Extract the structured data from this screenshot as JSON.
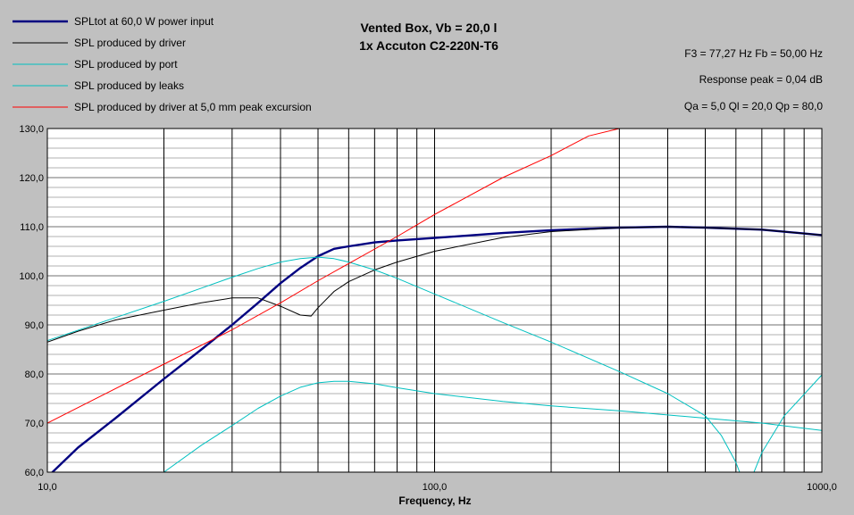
{
  "chart_data": {
    "type": "line",
    "title": "Vented Box, Vb = 20,0 l",
    "subtitle": "1x Accuton C2-220N-T6",
    "xlabel": "Frequency, Hz",
    "ylabel": "",
    "x_scale": "log",
    "xlim": [
      10,
      1000
    ],
    "ylim": [
      60,
      130
    ],
    "grid": true,
    "legend_position": "top-left",
    "info_lines": [
      "F3 = 77,27 Hz  Fb = 50,00 Hz",
      "Response peak = 0,04 dB",
      "Qa = 5,0  Ql = 20,0  Qp = 80,0"
    ],
    "x_ticks": [
      {
        "value": 10,
        "label": "10,0"
      },
      {
        "value": 100,
        "label": "100,0"
      },
      {
        "value": 1000,
        "label": "1000,0"
      }
    ],
    "y_ticks": [
      {
        "value": 60,
        "label": "60,0"
      },
      {
        "value": 70,
        "label": "70,0"
      },
      {
        "value": 80,
        "label": "80,0"
      },
      {
        "value": 90,
        "label": "90,0"
      },
      {
        "value": 100,
        "label": "100,0"
      },
      {
        "value": 110,
        "label": "110,0"
      },
      {
        "value": 120,
        "label": "120,0"
      },
      {
        "value": 130,
        "label": "130,0"
      }
    ],
    "series": [
      {
        "name": "SPLtot at 60,0 W power input",
        "color": "#000080",
        "width": "thick",
        "x": [
          10,
          12,
          15,
          20,
          25,
          30,
          35,
          40,
          45,
          50,
          55,
          60,
          70,
          80,
          100,
          150,
          200,
          300,
          400,
          500,
          700,
          1000
        ],
        "y": [
          59,
          65,
          71,
          79,
          85,
          90,
          94.5,
          98.5,
          101.6,
          104,
          105.5,
          106,
          106.8,
          107.2,
          107.7,
          108.7,
          109.3,
          109.8,
          110,
          109.8,
          109.4,
          108.3
        ]
      },
      {
        "name": "SPL produced by driver",
        "color": "#000000",
        "width": "thin",
        "x": [
          10,
          12,
          15,
          20,
          25,
          30,
          35,
          40,
          45,
          48,
          50,
          55,
          60,
          70,
          80,
          100,
          150,
          200,
          300,
          400,
          500,
          700,
          1000
        ],
        "y": [
          86.5,
          88.7,
          91,
          93,
          94.5,
          95.5,
          95.5,
          93.8,
          92,
          91.8,
          93.5,
          96.8,
          98.8,
          101.2,
          102.8,
          105,
          107.8,
          109,
          109.8,
          110,
          109.8,
          109.4,
          108.3
        ]
      },
      {
        "name": "SPL produced by port",
        "color": "#00c0c0",
        "width": "thin",
        "x": [
          10,
          15,
          20,
          25,
          30,
          35,
          40,
          45,
          50,
          55,
          60,
          70,
          80,
          100,
          150,
          200,
          300,
          400,
          500,
          550,
          600,
          620,
          660,
          700,
          800,
          1000
        ],
        "y": [
          86.8,
          91.5,
          94.8,
          97.5,
          99.7,
          101.5,
          102.8,
          103.5,
          103.8,
          103.5,
          102.8,
          101.2,
          99.5,
          96.3,
          90.5,
          86.5,
          80.5,
          76,
          71.5,
          67.5,
          62,
          59,
          59,
          64,
          71.5,
          79.8
        ]
      },
      {
        "name": "SPL produced by leaks",
        "color": "#00c0c0",
        "width": "thin",
        "x": [
          20,
          25,
          30,
          35,
          40,
          45,
          50,
          55,
          60,
          70,
          80,
          100,
          150,
          200,
          300,
          500,
          700,
          1000
        ],
        "y": [
          60,
          65.5,
          69.5,
          73,
          75.5,
          77.3,
          78.2,
          78.5,
          78.5,
          78,
          77.2,
          76,
          74.4,
          73.5,
          72.5,
          71,
          70,
          68.5
        ]
      },
      {
        "name": "SPL produced by driver at 5,0 mm peak excursion",
        "color": "#ff0000",
        "width": "thin",
        "x": [
          10,
          20,
          30,
          40,
          50,
          60,
          80,
          100,
          150,
          200,
          250,
          300,
          330
        ],
        "y": [
          70,
          82,
          89,
          94.5,
          99,
          102.5,
          108,
          112.5,
          120,
          124.5,
          128.5,
          130,
          131
        ]
      }
    ]
  }
}
